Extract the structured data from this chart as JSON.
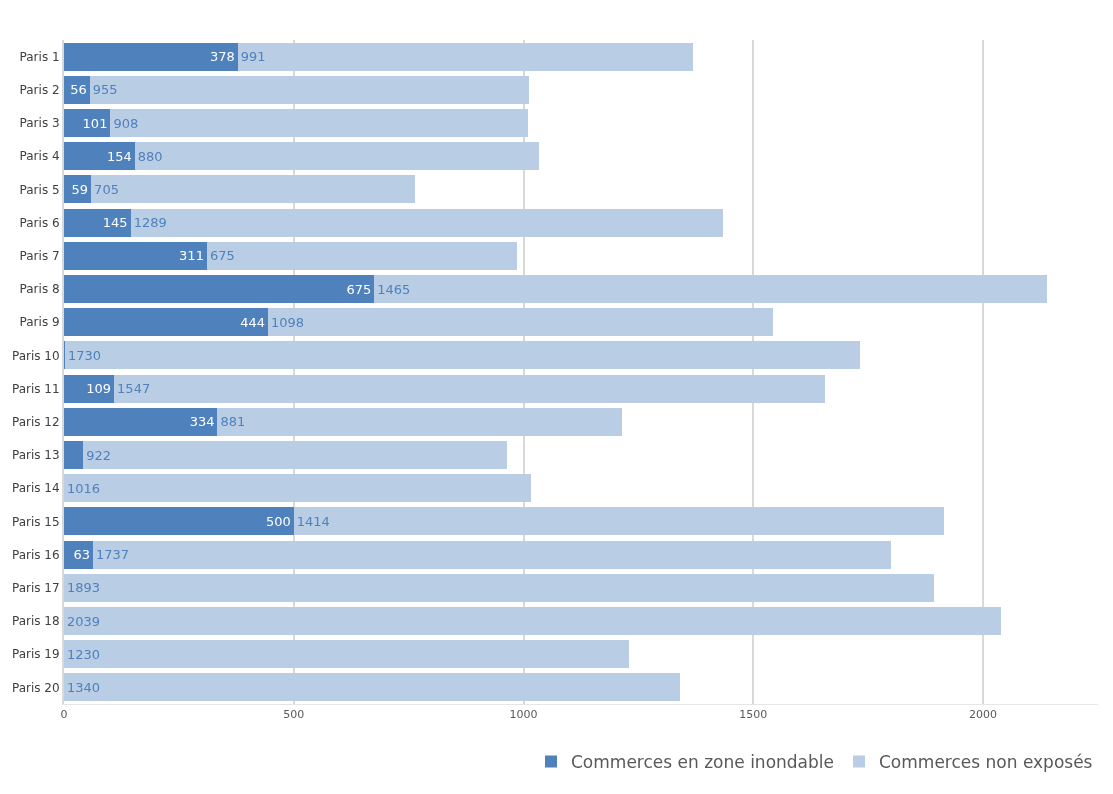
{
  "chart_data": {
    "type": "bar",
    "orientation": "horizontal",
    "stacked": true,
    "categories": [
      "Paris 1",
      "Paris 2",
      "Paris 3",
      "Paris 4",
      "Paris 5",
      "Paris 6",
      "Paris 7",
      "Paris 8",
      "Paris 9",
      "Paris 10",
      "Paris 11",
      "Paris 12",
      "Paris 13",
      "Paris 14",
      "Paris 15",
      "Paris 16",
      "Paris 17",
      "Paris 18",
      "Paris 19",
      "Paris 20"
    ],
    "series": [
      {
        "name": "Commerces en zone inondable",
        "color": "#4f81bd",
        "values": [
          378,
          56,
          101,
          154,
          59,
          145,
          311,
          675,
          444,
          2,
          109,
          334,
          42,
          0,
          500,
          63,
          0,
          0,
          0,
          0
        ],
        "value_labels": [
          "378",
          "56",
          "101",
          "154",
          "59",
          "145",
          "311",
          "675",
          "444",
          null,
          "109",
          "334",
          null,
          null,
          "500",
          "63",
          null,
          null,
          null,
          null
        ]
      },
      {
        "name": "Commerces non exposés",
        "color": "#b9cde5",
        "values": [
          991,
          955,
          908,
          880,
          705,
          1289,
          675,
          1465,
          1098,
          1730,
          1547,
          881,
          922,
          1016,
          1414,
          1737,
          1893,
          2039,
          1230,
          1340
        ],
        "value_labels": [
          "991",
          "955",
          "908",
          "880",
          "705",
          "1289",
          "675",
          "1465",
          "1098",
          "1730",
          "1547",
          "881",
          "922",
          "1016",
          "1414",
          "1737",
          "1893",
          "2039",
          "1230",
          "1340"
        ]
      }
    ],
    "xlim": [
      0,
      2250
    ],
    "xticks": [
      0,
      500,
      1000,
      1500,
      2000
    ],
    "grid": "x",
    "legend": "bottom right"
  }
}
